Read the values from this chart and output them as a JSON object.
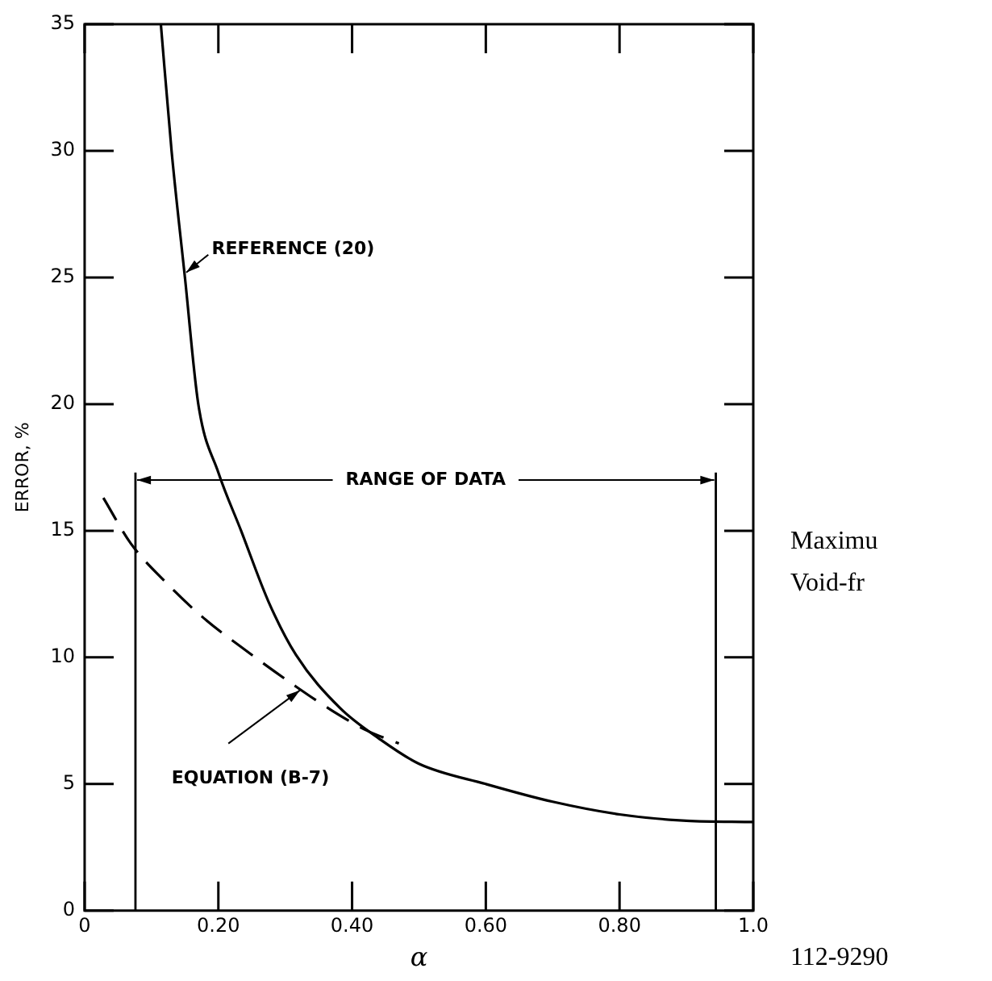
{
  "chart_data": {
    "type": "line",
    "xlabel": "α",
    "ylabel": "ERROR, %",
    "xlim": [
      0,
      1.0
    ],
    "ylim": [
      0,
      35
    ],
    "xticks": [
      0,
      {
        "value": 0.2,
        "label": "0.20"
      },
      {
        "value": 0.4,
        "label": "0.40"
      },
      {
        "value": 0.6,
        "label": "0.60"
      },
      {
        "value": 0.8,
        "label": "0.80"
      },
      {
        "value": 1.0,
        "label": "1.0"
      }
    ],
    "yticks": [
      0,
      5,
      10,
      15,
      20,
      25,
      30,
      35
    ],
    "grid": false,
    "legend": false,
    "marker": "none",
    "series": [
      {
        "name": "REFERENCE (20)",
        "color": "#000000",
        "line_style": "solid",
        "x": [
          0.114,
          0.13,
          0.15,
          0.17,
          0.2,
          0.234,
          0.275,
          0.316,
          0.382,
          0.44,
          0.5,
          0.6,
          0.7,
          0.8,
          0.9,
          1.0
        ],
        "values": [
          35,
          30,
          25,
          20,
          17.3,
          15,
          12.2,
          10.1,
          8.0,
          6.8,
          5.8,
          5.0,
          4.3,
          3.8,
          3.55,
          3.5
        ]
      },
      {
        "name": "EQUATION (B-7)",
        "color": "#000000",
        "line_style": "dashed",
        "x": [
          0.028,
          0.069,
          0.12,
          0.176,
          0.25,
          0.316,
          0.37,
          0.423,
          0.47
        ],
        "values": [
          16.3,
          14.5,
          13.0,
          11.6,
          10.1,
          8.85,
          7.9,
          7.1,
          6.6
        ]
      }
    ],
    "ref_lines": [
      {
        "axis": "x",
        "value": 0.076
      },
      {
        "axis": "x",
        "value": 0.944
      }
    ],
    "annotations": [
      {
        "text": "RANGE OF DATA",
        "x": 0.076,
        "y": 17.0
      },
      "Maximu",
      "Void-fr",
      "112-9290"
    ]
  }
}
